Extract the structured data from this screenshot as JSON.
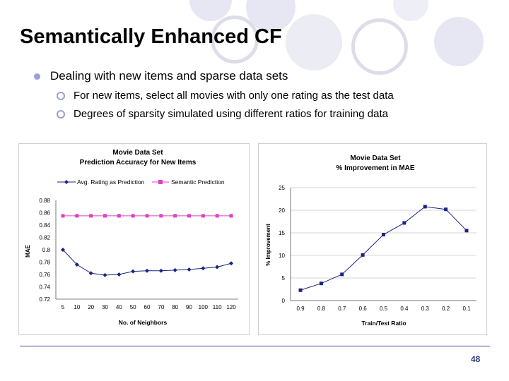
{
  "slide": {
    "title": "Semantically Enhanced CF",
    "bullet": "Dealing with new items and sparse data sets",
    "subbullets": [
      "For new items, select all movies with only one rating as the test data",
      "Degrees of sparsity simulated using different ratios for training data"
    ],
    "page_number": "48",
    "accent_color": "#9aa0dc"
  },
  "chart_data": [
    {
      "type": "line",
      "title": "Movie Data Set",
      "subtitle": "Prediction Accuracy for New Items",
      "xlabel": "No. of Neighbors",
      "ylabel": "MAE",
      "categories": [
        "5",
        "10",
        "20",
        "30",
        "40",
        "50",
        "60",
        "70",
        "80",
        "90",
        "100",
        "110",
        "120"
      ],
      "y_ticks": [
        "0.88",
        "0.86",
        "0.84",
        "0.82",
        "0.8",
        "0.78",
        "0.76",
        "0.74",
        "0.72"
      ],
      "ylim": [
        0.72,
        0.88
      ],
      "legend_position": "top",
      "series": [
        {
          "name": "Avg. Rating as Prediction",
          "color": "#1a237e",
          "marker": "diamond",
          "values": [
            0.8,
            0.776,
            0.762,
            0.759,
            0.76,
            0.765,
            0.766,
            0.766,
            0.767,
            0.768,
            0.77,
            0.772,
            0.778
          ]
        },
        {
          "name": "Semantic Prediction",
          "color": "#e040c0",
          "marker": "square",
          "values": [
            0.855,
            0.855,
            0.855,
            0.855,
            0.855,
            0.855,
            0.855,
            0.855,
            0.855,
            0.855,
            0.855,
            0.855,
            0.855
          ]
        }
      ]
    },
    {
      "type": "line",
      "title": "Movie Data Set",
      "subtitle": "% Improvement in MAE",
      "xlabel": "Train/Test Ratio",
      "ylabel": "% Improvement",
      "categories": [
        "0.9",
        "0.8",
        "0.7",
        "0.6",
        "0.5",
        "0.4",
        "0.3",
        "0.2",
        "0.1"
      ],
      "y_ticks": [
        "25",
        "20",
        "15",
        "10",
        "5",
        "0"
      ],
      "ylim": [
        0,
        25
      ],
      "legend_position": "none",
      "series": [
        {
          "name": "% Improvement",
          "color": "#1a237e",
          "marker": "square",
          "values": [
            2.3,
            3.8,
            5.8,
            10.1,
            14.6,
            17.2,
            20.8,
            20.2,
            15.5
          ]
        }
      ]
    }
  ]
}
